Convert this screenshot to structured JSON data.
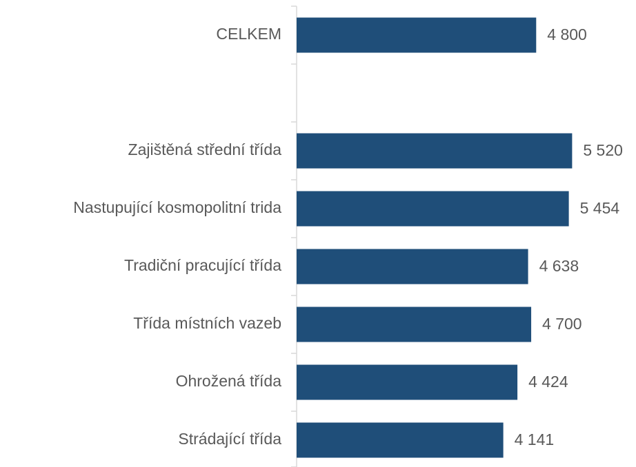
{
  "chart_data": {
    "type": "hbar",
    "categories": [
      "CELKEM",
      null,
      "Zajištěná střední třída",
      "Nastupující kosmopolitní trida",
      "Tradiční pracující třída",
      "Třída místních vazeb",
      "Ohrožená třída",
      "Strádající třída"
    ],
    "values": [
      4800,
      null,
      5520,
      5454,
      4638,
      4700,
      4424,
      4141
    ],
    "value_labels": [
      "4 800",
      null,
      "5 520",
      "5 454",
      "4 638",
      "4 700",
      "4 424",
      "4 141"
    ],
    "color": "#1f4e79",
    "xlim": [
      0,
      6800
    ]
  }
}
